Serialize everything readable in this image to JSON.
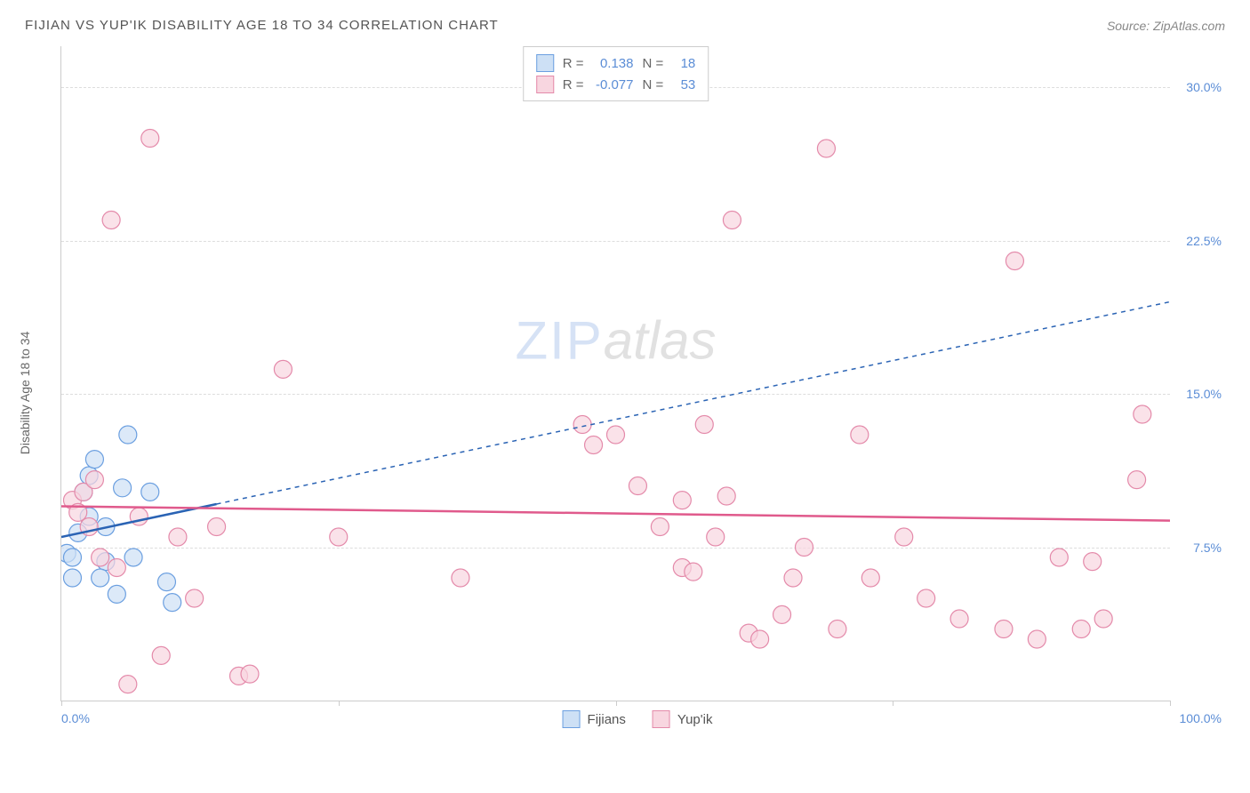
{
  "header": {
    "title": "FIJIAN VS YUP'IK DISABILITY AGE 18 TO 34 CORRELATION CHART",
    "source": "Source: ZipAtlas.com"
  },
  "chart": {
    "type": "scatter",
    "y_label": "Disability Age 18 to 34",
    "watermark_a": "ZIP",
    "watermark_b": "atlas",
    "xlim": [
      0,
      100
    ],
    "ylim": [
      0,
      32
    ],
    "y_ticks": [
      {
        "v": 7.5,
        "label": "7.5%"
      },
      {
        "v": 15.0,
        "label": "15.0%"
      },
      {
        "v": 22.5,
        "label": "22.5%"
      },
      {
        "v": 30.0,
        "label": "30.0%"
      }
    ],
    "x_tick_left": "0.0%",
    "x_tick_right": "100.0%",
    "x_tick_marks": [
      0,
      25,
      50,
      75,
      100
    ],
    "grid_color": "#dddddd",
    "background_color": "#ffffff",
    "series": [
      {
        "name": "Fijians",
        "fill": "#cde0f5",
        "stroke": "#6b9fe0",
        "line_color": "#2a63b4",
        "line_dash": "5,5",
        "marker_r": 10,
        "R": "0.138",
        "N": "18",
        "trend": {
          "x1": 0,
          "y1": 8.0,
          "x2": 100,
          "y2": 19.5,
          "solid_until_x": 14
        },
        "points": [
          {
            "x": 0.5,
            "y": 7.2
          },
          {
            "x": 1.0,
            "y": 7.0
          },
          {
            "x": 1.5,
            "y": 8.2
          },
          {
            "x": 2.0,
            "y": 10.2
          },
          {
            "x": 2.5,
            "y": 11.0
          },
          {
            "x": 3.0,
            "y": 11.8
          },
          {
            "x": 4.0,
            "y": 6.8
          },
          {
            "x": 4.0,
            "y": 8.5
          },
          {
            "x": 5.0,
            "y": 5.2
          },
          {
            "x": 5.5,
            "y": 10.4
          },
          {
            "x": 6.5,
            "y": 7.0
          },
          {
            "x": 6.0,
            "y": 13.0
          },
          {
            "x": 8.0,
            "y": 10.2
          },
          {
            "x": 9.5,
            "y": 5.8
          },
          {
            "x": 10.0,
            "y": 4.8
          },
          {
            "x": 1.0,
            "y": 6.0
          },
          {
            "x": 2.5,
            "y": 9.0
          },
          {
            "x": 3.5,
            "y": 6.0
          }
        ]
      },
      {
        "name": "Yup'ik",
        "fill": "#f8d6e0",
        "stroke": "#e48aaa",
        "line_color": "#e05a8c",
        "line_dash": "",
        "marker_r": 10,
        "R": "-0.077",
        "N": "53",
        "trend": {
          "x1": 0,
          "y1": 9.5,
          "x2": 100,
          "y2": 8.8,
          "solid_until_x": 100
        },
        "points": [
          {
            "x": 1.0,
            "y": 9.8
          },
          {
            "x": 1.5,
            "y": 9.2
          },
          {
            "x": 2.0,
            "y": 10.2
          },
          {
            "x": 2.5,
            "y": 8.5
          },
          {
            "x": 3.0,
            "y": 10.8
          },
          {
            "x": 3.5,
            "y": 7.0
          },
          {
            "x": 4.5,
            "y": 23.5
          },
          {
            "x": 5.0,
            "y": 6.5
          },
          {
            "x": 6.0,
            "y": 0.8
          },
          {
            "x": 7.0,
            "y": 9.0
          },
          {
            "x": 8.0,
            "y": 27.5
          },
          {
            "x": 9.0,
            "y": 2.2
          },
          {
            "x": 10.5,
            "y": 8.0
          },
          {
            "x": 12.0,
            "y": 5.0
          },
          {
            "x": 14.0,
            "y": 8.5
          },
          {
            "x": 16.0,
            "y": 1.2
          },
          {
            "x": 17.0,
            "y": 1.3
          },
          {
            "x": 20.0,
            "y": 16.2
          },
          {
            "x": 25.0,
            "y": 8.0
          },
          {
            "x": 36.0,
            "y": 6.0
          },
          {
            "x": 47.0,
            "y": 13.5
          },
          {
            "x": 48.0,
            "y": 12.5
          },
          {
            "x": 50.0,
            "y": 13.0
          },
          {
            "x": 52.0,
            "y": 10.5
          },
          {
            "x": 54.0,
            "y": 8.5
          },
          {
            "x": 56.0,
            "y": 6.5
          },
          {
            "x": 56.0,
            "y": 9.8
          },
          {
            "x": 57.0,
            "y": 6.3
          },
          {
            "x": 58.0,
            "y": 13.5
          },
          {
            "x": 59.0,
            "y": 8.0
          },
          {
            "x": 60.0,
            "y": 10.0
          },
          {
            "x": 60.5,
            "y": 23.5
          },
          {
            "x": 62.0,
            "y": 3.3
          },
          {
            "x": 63.0,
            "y": 3.0
          },
          {
            "x": 65.0,
            "y": 4.2
          },
          {
            "x": 66.0,
            "y": 6.0
          },
          {
            "x": 67.0,
            "y": 7.5
          },
          {
            "x": 69.0,
            "y": 27.0
          },
          {
            "x": 70.0,
            "y": 3.5
          },
          {
            "x": 72.0,
            "y": 13.0
          },
          {
            "x": 73.0,
            "y": 6.0
          },
          {
            "x": 76.0,
            "y": 8.0
          },
          {
            "x": 78.0,
            "y": 5.0
          },
          {
            "x": 81.0,
            "y": 4.0
          },
          {
            "x": 85.0,
            "y": 3.5
          },
          {
            "x": 86.0,
            "y": 21.5
          },
          {
            "x": 88.0,
            "y": 3.0
          },
          {
            "x": 90.0,
            "y": 7.0
          },
          {
            "x": 92.0,
            "y": 3.5
          },
          {
            "x": 93.0,
            "y": 6.8
          },
          {
            "x": 94.0,
            "y": 4.0
          },
          {
            "x": 97.0,
            "y": 10.8
          },
          {
            "x": 97.5,
            "y": 14.0
          }
        ]
      }
    ],
    "bottom_legend": [
      {
        "label": "Fijians",
        "fill": "#cde0f5",
        "stroke": "#6b9fe0"
      },
      {
        "label": "Yup'ik",
        "fill": "#f8d6e0",
        "stroke": "#e48aaa"
      }
    ]
  }
}
